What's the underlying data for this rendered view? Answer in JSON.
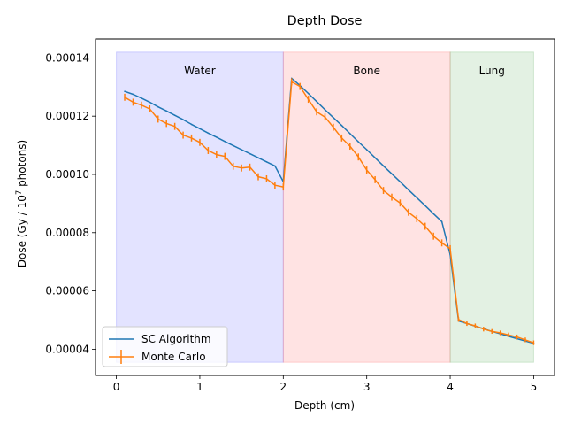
{
  "chart_data": {
    "type": "line",
    "title": "Depth Dose",
    "xlabel": "Depth (cm)",
    "ylabel_main": "Dose (Gy / 10",
    "ylabel_sup": "7",
    "ylabel_tail": " photons)",
    "xlim": [
      -0.25,
      5.25
    ],
    "ylim": [
      3.1e-05,
      0.0001465
    ],
    "xticks": [
      0,
      1,
      2,
      3,
      4,
      5
    ],
    "xtick_labels": [
      "0",
      "1",
      "2",
      "3",
      "4",
      "5"
    ],
    "yticks": [
      4e-05,
      6e-05,
      8e-05,
      0.0001,
      0.00012,
      0.00014
    ],
    "ytick_labels": [
      "0.00004",
      "0.00006",
      "0.00008",
      "0.00010",
      "0.00012",
      "0.00014"
    ],
    "regions": [
      {
        "label": "Water",
        "x0": 0,
        "x1": 2,
        "y0": 3.55e-05,
        "y1": 0.000142,
        "color": "#0000ff",
        "opacity": 0.11
      },
      {
        "label": "Bone",
        "x0": 2,
        "x1": 4,
        "y0": 3.55e-05,
        "y1": 0.000142,
        "color": "#ff0000",
        "opacity": 0.11
      },
      {
        "label": "Lung",
        "x0": 4,
        "x1": 5,
        "y0": 3.55e-05,
        "y1": 0.000142,
        "color": "#008000",
        "opacity": 0.11
      }
    ],
    "region_label_y": 0.0001355,
    "series": [
      {
        "name": "SC Algorithm",
        "color": "#1f77b4",
        "x": [
          0.1,
          0.2,
          0.3,
          0.4,
          0.5,
          0.6,
          0.7,
          0.8,
          0.9,
          1.0,
          1.1,
          1.2,
          1.3,
          1.4,
          1.5,
          1.6,
          1.7,
          1.8,
          1.9,
          2.0,
          2.1,
          2.2,
          2.3,
          2.4,
          2.5,
          2.6,
          2.7,
          2.8,
          2.9,
          3.0,
          3.1,
          3.2,
          3.3,
          3.4,
          3.5,
          3.6,
          3.7,
          3.8,
          3.9,
          4.0,
          4.1,
          4.2,
          4.3,
          4.4,
          4.5,
          4.6,
          4.7,
          4.8,
          4.9,
          5.0
        ],
        "y": [
          0.0001285,
          0.0001275,
          0.0001262,
          0.0001248,
          0.0001232,
          0.0001218,
          0.0001203,
          0.0001188,
          0.0001172,
          0.0001157,
          0.0001142,
          0.0001128,
          0.0001113,
          0.0001099,
          0.0001085,
          0.0001071,
          0.0001057,
          0.0001043,
          0.0001029,
          9.75e-05,
          0.000133,
          0.0001305,
          0.0001278,
          0.000125,
          0.0001222,
          0.0001195,
          0.0001168,
          0.000114,
          0.0001112,
          0.0001085,
          0.0001057,
          0.0001029,
          0.0001002,
          9.75e-05,
          9.47e-05,
          9.2e-05,
          8.93e-05,
          8.65e-05,
          8.38e-05,
          7.25e-05,
          4.97e-05,
          4.88e-05,
          4.79e-05,
          4.7e-05,
          4.61e-05,
          4.53e-05,
          4.44e-05,
          4.36e-05,
          4.28e-05,
          4.2e-05
        ]
      },
      {
        "name": "Monte Carlo",
        "color": "#ff7f0e",
        "x": [
          0.1,
          0.2,
          0.3,
          0.4,
          0.5,
          0.6,
          0.7,
          0.8,
          0.9,
          1.0,
          1.1,
          1.2,
          1.3,
          1.4,
          1.5,
          1.6,
          1.7,
          1.8,
          1.9,
          2.0,
          2.1,
          2.2,
          2.3,
          2.4,
          2.5,
          2.6,
          2.7,
          2.8,
          2.9,
          3.0,
          3.1,
          3.2,
          3.3,
          3.4,
          3.5,
          3.6,
          3.7,
          3.8,
          3.9,
          4.0,
          4.1,
          4.2,
          4.3,
          4.4,
          4.5,
          4.6,
          4.7,
          4.8,
          4.9,
          5.0
        ],
        "y": [
          0.0001265,
          0.0001248,
          0.0001238,
          0.0001225,
          0.000119,
          0.0001175,
          0.0001165,
          0.0001135,
          0.0001125,
          0.000111,
          0.0001082,
          0.0001068,
          0.0001062,
          0.0001028,
          0.0001022,
          0.0001025,
          9.92e-05,
          9.85e-05,
          9.63e-05,
          9.57e-05,
          0.0001318,
          0.0001302,
          0.0001258,
          0.0001215,
          0.0001197,
          0.0001162,
          0.0001125,
          0.0001097,
          0.000106,
          0.0001015,
          9.82e-05,
          9.45e-05,
          9.22e-05,
          9.02e-05,
          8.7e-05,
          8.48e-05,
          8.22e-05,
          7.88e-05,
          7.65e-05,
          7.45e-05,
          5.02e-05,
          4.88e-05,
          4.8e-05,
          4.69e-05,
          4.61e-05,
          4.56e-05,
          4.49e-05,
          4.42e-05,
          4.32e-05,
          4.22e-05
        ],
        "err": [
          1.2e-06,
          1.2e-06,
          1.2e-06,
          1.2e-06,
          1.2e-06,
          1.2e-06,
          1.2e-06,
          1.2e-06,
          1.2e-06,
          1.2e-06,
          1.2e-06,
          1.2e-06,
          1.2e-06,
          1.2e-06,
          1.2e-06,
          1.2e-06,
          1.2e-06,
          1.2e-06,
          1.2e-06,
          1.2e-06,
          1.2e-06,
          1.2e-06,
          1.2e-06,
          1.2e-06,
          1.2e-06,
          1.2e-06,
          1.2e-06,
          1.2e-06,
          1.2e-06,
          1.2e-06,
          1.2e-06,
          1.2e-06,
          1.2e-06,
          1.2e-06,
          1.2e-06,
          1.2e-06,
          1.2e-06,
          1.2e-06,
          1.2e-06,
          1.2e-06,
          8e-07,
          8e-07,
          8e-07,
          8e-07,
          8e-07,
          8e-07,
          8e-07,
          8e-07,
          8e-07,
          8e-07
        ]
      }
    ],
    "legend_position": "lower-left",
    "grid": false
  }
}
